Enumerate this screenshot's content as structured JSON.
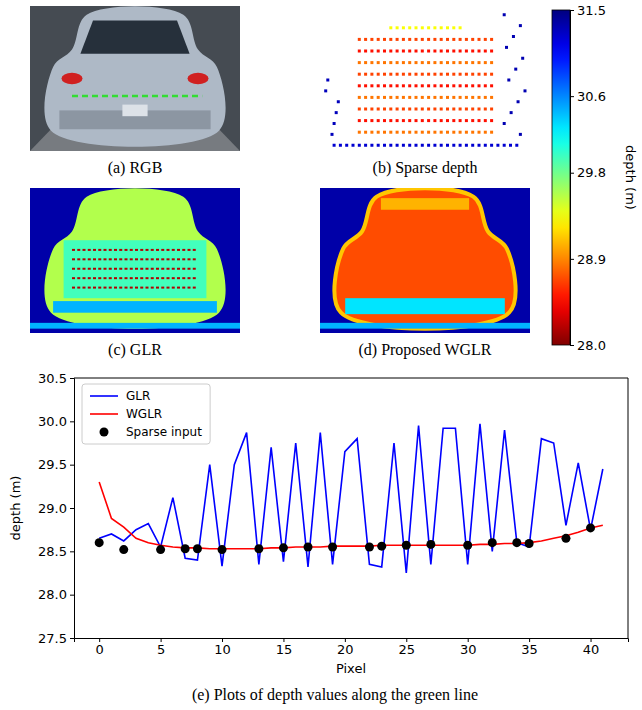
{
  "chart_data": [
    {
      "type": "image",
      "caption": "(a) RGB"
    },
    {
      "type": "image",
      "caption": "(b) Sparse depth"
    },
    {
      "type": "image",
      "caption": "(c) GLR"
    },
    {
      "type": "image",
      "caption": "(d) Proposed WGLR"
    },
    {
      "type": "colorbar",
      "ylabel": "depth (m)",
      "ylim": [
        28.0,
        31.5
      ],
      "yticks": [
        {
          "value": 28.0,
          "label": "28.0"
        },
        28.9,
        29.8,
        30.6,
        31.5
      ]
    },
    {
      "type": "line",
      "caption": "(e) Plots of depth values along the green line",
      "xlabel": "Pixel",
      "ylabel": "depth (m)",
      "xlim": [
        -2.05,
        43.05
      ],
      "ylim": [
        27.5,
        30.5
      ],
      "xticks": [
        0,
        5,
        10,
        15,
        20,
        25,
        30,
        35,
        40
      ],
      "yticks": [
        27.5,
        {
          "value": 28.0,
          "label": "28.0"
        },
        28.5,
        {
          "value": 29.0,
          "label": "29.0"
        },
        29.5,
        {
          "value": 30.0,
          "label": "30.0"
        },
        30.5
      ],
      "grid": false,
      "legend": "upper left",
      "x": [
        0,
        1,
        2,
        3,
        4,
        5,
        6,
        7,
        8,
        9,
        10,
        11,
        12,
        13,
        14,
        15,
        16,
        17,
        18,
        19,
        20,
        21,
        22,
        23,
        24,
        25,
        26,
        27,
        28,
        29,
        30,
        31,
        32,
        33,
        34,
        35,
        36,
        37,
        38,
        39,
        40,
        41
      ],
      "series": [
        {
          "name": "GLR",
          "type": "line",
          "color": "#0000ff",
          "line_style": "solid",
          "values": [
            28.65,
            28.7,
            28.62,
            28.75,
            28.82,
            28.55,
            29.12,
            28.42,
            28.4,
            29.5,
            28.33,
            29.5,
            29.87,
            28.35,
            29.7,
            28.38,
            29.75,
            28.32,
            29.87,
            28.35,
            29.65,
            29.8,
            28.35,
            28.32,
            29.75,
            28.25,
            29.95,
            28.35,
            29.92,
            29.92,
            28.35,
            29.97,
            28.5,
            29.9,
            28.6,
            28.55,
            29.8,
            29.75,
            28.8,
            29.52,
            28.75,
            29.45
          ]
        },
        {
          "name": "WGLR",
          "type": "line",
          "color": "#ff0000",
          "line_style": "solid",
          "values": [
            29.3,
            28.88,
            28.78,
            28.65,
            28.6,
            28.57,
            28.55,
            28.54,
            28.54,
            28.53,
            28.53,
            28.53,
            28.53,
            28.53,
            28.54,
            28.54,
            28.55,
            28.55,
            28.55,
            28.56,
            28.56,
            28.56,
            28.56,
            28.57,
            28.57,
            28.57,
            28.57,
            28.57,
            28.57,
            28.57,
            28.57,
            28.58,
            28.58,
            28.59,
            28.59,
            28.6,
            28.62,
            28.65,
            28.68,
            28.72,
            28.77,
            28.8
          ]
        },
        {
          "name": "Sparse input",
          "type": "scatter",
          "color": "#000000",
          "marker": "circle",
          "x": [
            0,
            2,
            5,
            7,
            8,
            10,
            13,
            15,
            17,
            19,
            22,
            23,
            25,
            27,
            30,
            32,
            34,
            35,
            38,
            40
          ],
          "values": [
            28.6,
            28.52,
            28.52,
            28.53,
            28.53,
            28.52,
            28.53,
            28.54,
            28.55,
            28.55,
            28.55,
            28.56,
            28.57,
            28.58,
            28.57,
            28.6,
            28.6,
            28.59,
            28.65,
            28.77
          ]
        }
      ]
    }
  ]
}
